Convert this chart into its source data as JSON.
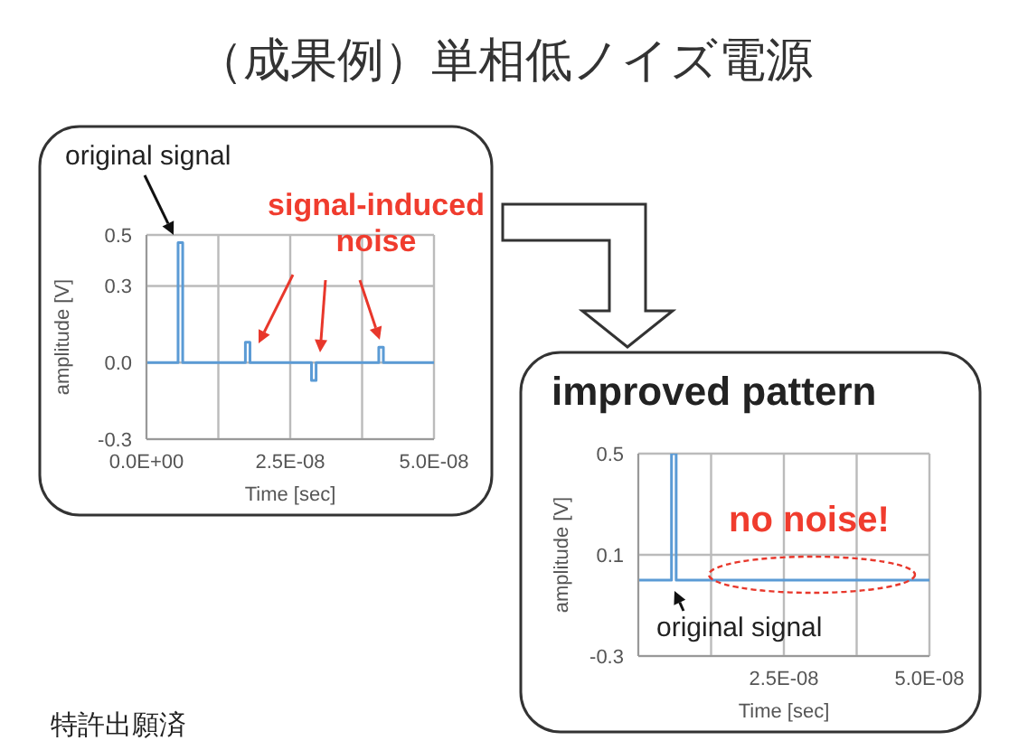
{
  "chart_data": [
    {
      "type": "line",
      "title": "（成果例）単相低ノイズ電源",
      "xlabel": "Time [sec]",
      "ylabel": "amplitude [V]",
      "color": "#5b9bd5",
      "marker": "none",
      "grid": true,
      "x": [
        0,
        5.5e-09,
        5.5e-09,
        6.3e-09,
        6.3e-09,
        1.72e-08,
        1.72e-08,
        1.8e-08,
        1.8e-08,
        2.87e-08,
        2.87e-08,
        2.95e-08,
        2.95e-08,
        4.04e-08,
        4.04e-08,
        4.12e-08,
        4.12e-08,
        5e-08
      ],
      "values": [
        0,
        0,
        0.47,
        0.47,
        0,
        0,
        0.08,
        0.08,
        0,
        0,
        -0.07,
        -0.07,
        0,
        0,
        0.06,
        0.06,
        0,
        0
      ],
      "xlim": [
        0,
        5e-08
      ],
      "xticks": [
        {
          "value": 0,
          "label": "0.0E+00"
        },
        {
          "value": 1.25e-08,
          "label": null
        },
        {
          "value": 2.5e-08,
          "label": "2.5E-08"
        },
        {
          "value": 3.75e-08,
          "label": null
        },
        {
          "value": 5e-08,
          "label": "5.0E-08"
        }
      ],
      "ylim": [
        -0.3,
        0.5
      ],
      "yticks": [
        -0.3,
        {
          "value": 0,
          "label": "0.0"
        },
        0.3,
        0.5
      ],
      "annotations": [
        "original signal",
        "signal-induced noise",
        "特許出願済"
      ]
    },
    {
      "type": "line",
      "title": "improved pattern",
      "xlabel": "Time [sec]",
      "ylabel": "amplitude [V]",
      "color": "#5b9bd5",
      "marker": "none",
      "grid": true,
      "x": [
        0,
        5.7e-09,
        5.7e-09,
        6.5e-09,
        6.5e-09,
        5e-08
      ],
      "values": [
        0,
        0,
        0.5,
        0.5,
        0,
        0
      ],
      "xlim": [
        0,
        5e-08
      ],
      "xticks": [
        {
          "value": 0,
          "label": null
        },
        {
          "value": 1.25e-08,
          "label": null
        },
        {
          "value": 2.5e-08,
          "label": "2.5E-08"
        },
        {
          "value": 3.75e-08,
          "label": null
        },
        {
          "value": 5e-08,
          "label": "5.0E-08"
        }
      ],
      "ylim": [
        -0.3,
        0.5
      ],
      "yticks": [
        -0.3,
        0.1,
        0.5
      ],
      "annotations": [
        "no noise!",
        "original signal"
      ]
    }
  ]
}
